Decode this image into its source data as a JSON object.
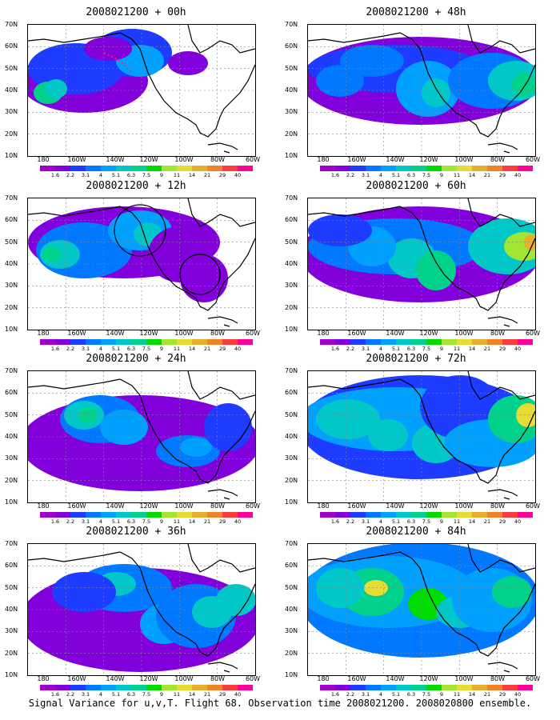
{
  "caption": "Signal Variance for u,v,T. Flight 68. Observation time 2008021200. 2008020800 ensemble.",
  "colorbar": {
    "labels": [
      "1.6",
      "2.2",
      "3.1",
      "4",
      "5.1",
      "6.3",
      "7.5",
      "9",
      "11",
      "14",
      "21",
      "29",
      "40"
    ],
    "colors": [
      "#a000c8",
      "#8200dc",
      "#1e3cff",
      "#0078ff",
      "#00a0ff",
      "#00c8c8",
      "#00d28c",
      "#00dc00",
      "#a0e632",
      "#e6dc32",
      "#e6af2d",
      "#f08228",
      "#fa3c3c",
      "#ff0096"
    ]
  },
  "axes": {
    "y_ticks": [
      "70N",
      "60N",
      "50N",
      "40N",
      "30N",
      "20N",
      "10N"
    ],
    "x_ticks": [
      "180",
      "160W",
      "140W",
      "120W",
      "100W",
      "80W",
      "60W"
    ]
  },
  "chart_data": [
    {
      "type": "heatmap",
      "title": "2008021200 + 00h",
      "lead_hours": 0,
      "lon_range": [
        "180",
        "60W"
      ],
      "lat_range": [
        "10N",
        "70N"
      ]
    },
    {
      "type": "heatmap",
      "title": "2008021200 + 12h",
      "lead_hours": 12,
      "lon_range": [
        "180",
        "60W"
      ],
      "lat_range": [
        "10N",
        "70N"
      ]
    },
    {
      "type": "heatmap",
      "title": "2008021200 + 24h",
      "lead_hours": 24,
      "lon_range": [
        "180",
        "60W"
      ],
      "lat_range": [
        "10N",
        "70N"
      ]
    },
    {
      "type": "heatmap",
      "title": "2008021200 + 36h",
      "lead_hours": 36,
      "lon_range": [
        "180",
        "60W"
      ],
      "lat_range": [
        "10N",
        "70N"
      ]
    },
    {
      "type": "heatmap",
      "title": "2008021200 + 48h",
      "lead_hours": 48,
      "lon_range": [
        "180",
        "60W"
      ],
      "lat_range": [
        "10N",
        "70N"
      ]
    },
    {
      "type": "heatmap",
      "title": "2008021200 + 60h",
      "lead_hours": 60,
      "lon_range": [
        "180",
        "60W"
      ],
      "lat_range": [
        "10N",
        "70N"
      ]
    },
    {
      "type": "heatmap",
      "title": "2008021200 + 72h",
      "lead_hours": 72,
      "lon_range": [
        "180",
        "60W"
      ],
      "lat_range": [
        "10N",
        "70N"
      ]
    },
    {
      "type": "heatmap",
      "title": "2008021200 + 84h",
      "lead_hours": 84,
      "lon_range": [
        "180",
        "60W"
      ],
      "lat_range": [
        "10N",
        "70N"
      ]
    }
  ]
}
